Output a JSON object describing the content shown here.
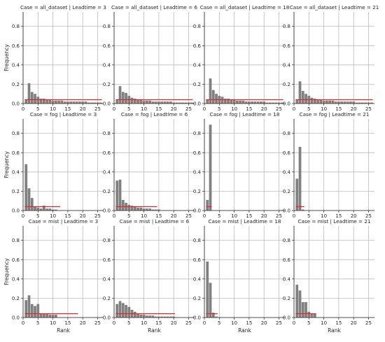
{
  "figure": {
    "ylabel": "Frequency",
    "xlabel": "Rank",
    "colors": {
      "bar": "#808080",
      "reference_line": "#e8242b",
      "grid": "#b0b0b0",
      "axis": "#262626"
    }
  },
  "chart_data": [
    {
      "type": "bar",
      "title": "Case = all_dataset | Leadtime = 3",
      "xlabel": "",
      "ylabel": "Frequency",
      "xlim": [
        0,
        27
      ],
      "ylim": [
        0,
        0.95
      ],
      "xticks": [
        0,
        5,
        10,
        15,
        20,
        25
      ],
      "yticks": [
        0.0,
        0.2,
        0.4,
        0.6,
        0.8
      ],
      "grid": true,
      "x": [
        1,
        2,
        3,
        4,
        5,
        6,
        7,
        8,
        9,
        10,
        11,
        12,
        13,
        14,
        15,
        16,
        17,
        18,
        19,
        20,
        21,
        22,
        23,
        24,
        25,
        26
      ],
      "values": [
        0.04,
        0.21,
        0.12,
        0.1,
        0.07,
        0.05,
        0.05,
        0.04,
        0.04,
        0.03,
        0.03,
        0.03,
        0.03,
        0.02,
        0.02,
        0.02,
        0.02,
        0.02,
        0.02,
        0.02,
        0.02,
        0.01,
        0.01,
        0.01,
        0.01,
        0.01
      ],
      "reference": {
        "value": 0.04,
        "x_range": [
          1,
          26
        ]
      }
    },
    {
      "type": "bar",
      "title": "Case = all_dataset | Leadtime = 6",
      "xlabel": "",
      "ylabel": "",
      "xlim": [
        0,
        27
      ],
      "ylim": [
        0,
        0.95
      ],
      "xticks": [
        0,
        5,
        10,
        15,
        20,
        25
      ],
      "yticks": [
        0.0,
        0.2,
        0.4,
        0.6,
        0.8
      ],
      "grid": true,
      "x": [
        1,
        2,
        3,
        4,
        5,
        6,
        7,
        8,
        9,
        10,
        11,
        12,
        13,
        14,
        15,
        16,
        17,
        18,
        19,
        20,
        21,
        22,
        23,
        24,
        25,
        26
      ],
      "values": [
        0.04,
        0.18,
        0.12,
        0.11,
        0.08,
        0.06,
        0.05,
        0.04,
        0.04,
        0.03,
        0.03,
        0.03,
        0.02,
        0.02,
        0.02,
        0.02,
        0.02,
        0.02,
        0.02,
        0.01,
        0.01,
        0.01,
        0.01,
        0.01,
        0.01,
        0.01
      ],
      "reference": {
        "value": 0.04,
        "x_range": [
          1,
          26
        ]
      }
    },
    {
      "type": "bar",
      "title": "Case = all_dataset | Leadtime = 18",
      "xlabel": "",
      "ylabel": "",
      "xlim": [
        0,
        27
      ],
      "ylim": [
        0,
        0.95
      ],
      "xticks": [
        0,
        5,
        10,
        15,
        20,
        25
      ],
      "yticks": [
        0.0,
        0.2,
        0.4,
        0.6,
        0.8
      ],
      "grid": true,
      "x": [
        1,
        2,
        3,
        4,
        5,
        6,
        7,
        8,
        9,
        10,
        11,
        12,
        13,
        14,
        15,
        16,
        17,
        18,
        19,
        20,
        21,
        22,
        23,
        24,
        25,
        26
      ],
      "values": [
        0.04,
        0.26,
        0.14,
        0.1,
        0.08,
        0.07,
        0.05,
        0.05,
        0.04,
        0.04,
        0.03,
        0.03,
        0.03,
        0.02,
        0.02,
        0.02,
        0.02,
        0.02,
        0.02,
        0.02,
        0.01,
        0.01,
        0.01,
        0.01,
        0.01,
        0.01
      ],
      "reference": {
        "value": 0.04,
        "x_range": [
          1,
          26
        ]
      }
    },
    {
      "type": "bar",
      "title": "Case = all_dataset | Leadtime = 21",
      "xlabel": "",
      "ylabel": "",
      "xlim": [
        0,
        27
      ],
      "ylim": [
        0,
        0.95
      ],
      "xticks": [
        0,
        5,
        10,
        15,
        20,
        25
      ],
      "yticks": [
        0.0,
        0.2,
        0.4,
        0.6,
        0.8
      ],
      "grid": true,
      "x": [
        1,
        2,
        3,
        4,
        5,
        6,
        7,
        8,
        9,
        10,
        11,
        12,
        13,
        14,
        15,
        16,
        17,
        18,
        19,
        20,
        21,
        22,
        23,
        24,
        25,
        26
      ],
      "values": [
        0.04,
        0.23,
        0.13,
        0.1,
        0.08,
        0.06,
        0.05,
        0.04,
        0.04,
        0.03,
        0.03,
        0.03,
        0.03,
        0.02,
        0.02,
        0.02,
        0.02,
        0.02,
        0.02,
        0.02,
        0.01,
        0.01,
        0.01,
        0.01,
        0.01,
        0.01
      ],
      "reference": {
        "value": 0.04,
        "x_range": [
          1,
          26
        ]
      }
    },
    {
      "type": "bar",
      "title": "Case = fog | Leadtime = 3",
      "xlabel": "",
      "ylabel": "Frequency",
      "xlim": [
        0,
        27
      ],
      "ylim": [
        0,
        0.95
      ],
      "xticks": [
        0,
        5,
        10,
        15,
        20,
        25
      ],
      "yticks": [
        0.0,
        0.2,
        0.4,
        0.6,
        0.8
      ],
      "grid": true,
      "x": [
        1,
        2,
        3,
        4,
        5,
        6,
        7,
        8,
        9,
        10,
        11
      ],
      "values": [
        0.48,
        0.23,
        0.13,
        0.04,
        0.03,
        0.02,
        0.05,
        0.02,
        0.02,
        0.01,
        0.01
      ],
      "reference": {
        "value": 0.04,
        "x_range": [
          1,
          12
        ]
      }
    },
    {
      "type": "bar",
      "title": "Case = fog | Leadtime = 6",
      "xlabel": "",
      "ylabel": "",
      "xlim": [
        0,
        27
      ],
      "ylim": [
        0,
        0.95
      ],
      "xticks": [
        0,
        5,
        10,
        15,
        20,
        25
      ],
      "yticks": [
        0.0,
        0.2,
        0.4,
        0.6,
        0.8
      ],
      "grid": true,
      "x": [
        1,
        2,
        3,
        4,
        5,
        6,
        7,
        8,
        9,
        10,
        11,
        12,
        13,
        14,
        15
      ],
      "values": [
        0.31,
        0.32,
        0.11,
        0.08,
        0.06,
        0.05,
        0.04,
        0.03,
        0.03,
        0.02,
        0.02,
        0.02,
        0.01,
        0.01,
        0.01
      ],
      "reference": {
        "value": 0.04,
        "x_range": [
          1,
          14
        ]
      }
    },
    {
      "type": "bar",
      "title": "Case = fog | Leadtime = 18",
      "xlabel": "",
      "ylabel": "",
      "xlim": [
        0,
        27
      ],
      "ylim": [
        0,
        0.95
      ],
      "xticks": [
        0,
        5,
        10,
        15,
        20,
        25
      ],
      "yticks": [
        0.0,
        0.2,
        0.4,
        0.6,
        0.8
      ],
      "grid": true,
      "x": [
        1,
        2
      ],
      "values": [
        0.11,
        0.89
      ],
      "reference": {
        "value": 0.04,
        "x_range": [
          1,
          2
        ]
      }
    },
    {
      "type": "bar",
      "title": "Case = fog | Leadtime = 21",
      "xlabel": "",
      "ylabel": "",
      "xlim": [
        0,
        27
      ],
      "ylim": [
        0,
        0.95
      ],
      "xticks": [
        0,
        5,
        10,
        15,
        20,
        25
      ],
      "yticks": [
        0.0,
        0.2,
        0.4,
        0.6,
        0.8
      ],
      "grid": true,
      "x": [
        1,
        2,
        3
      ],
      "values": [
        0.33,
        0.66,
        0.01
      ],
      "reference": {
        "value": 0.04,
        "x_range": [
          1,
          3
        ]
      }
    },
    {
      "type": "bar",
      "title": "Case = mist | Leadtime = 3",
      "xlabel": "Rank",
      "ylabel": "Frequency",
      "xlim": [
        0,
        27
      ],
      "ylim": [
        0,
        0.95
      ],
      "xticks": [
        0,
        5,
        10,
        15,
        20,
        25
      ],
      "yticks": [
        0.0,
        0.2,
        0.4,
        0.6,
        0.8
      ],
      "grid": true,
      "x": [
        1,
        2,
        3,
        4,
        5,
        6,
        7,
        8,
        9,
        10,
        11
      ],
      "values": [
        0.18,
        0.23,
        0.14,
        0.12,
        0.14,
        0.04,
        0.04,
        0.04,
        0.03,
        0.03,
        0.03
      ],
      "reference": {
        "value": 0.04,
        "x_range": [
          1,
          18
        ]
      }
    },
    {
      "type": "bar",
      "title": "Case = mist | Leadtime = 6",
      "xlabel": "Rank",
      "ylabel": "",
      "xlim": [
        0,
        27
      ],
      "ylim": [
        0,
        0.95
      ],
      "xticks": [
        0,
        5,
        10,
        15,
        20,
        25
      ],
      "yticks": [
        0.0,
        0.2,
        0.4,
        0.6,
        0.8
      ],
      "grid": true,
      "x": [
        1,
        2,
        3,
        4,
        5,
        6,
        7,
        8,
        9,
        10,
        11,
        12,
        13,
        14,
        15,
        16,
        17,
        18,
        19,
        20
      ],
      "values": [
        0.14,
        0.17,
        0.15,
        0.13,
        0.11,
        0.08,
        0.06,
        0.04,
        0.03,
        0.03,
        0.02,
        0.02,
        0.02,
        0.01,
        0.01,
        0.01,
        0.01,
        0.01,
        0.01,
        0.01
      ],
      "reference": {
        "value": 0.04,
        "x_range": [
          1,
          20
        ]
      }
    },
    {
      "type": "bar",
      "title": "Case = mist | Leadtime = 18",
      "xlabel": "Rank",
      "ylabel": "",
      "xlim": [
        0,
        27
      ],
      "ylim": [
        0,
        0.95
      ],
      "xticks": [
        0,
        5,
        10,
        15,
        20,
        25
      ],
      "yticks": [
        0.0,
        0.2,
        0.4,
        0.6,
        0.8
      ],
      "grid": true,
      "x": [
        1,
        2,
        3,
        4
      ],
      "values": [
        0.58,
        0.36,
        0.05,
        0.01
      ],
      "reference": {
        "value": 0.04,
        "x_range": [
          1,
          4
        ]
      }
    },
    {
      "type": "bar",
      "title": "Case = mist | Leadtime = 21",
      "xlabel": "Rank",
      "ylabel": "",
      "xlim": [
        0,
        27
      ],
      "ylim": [
        0,
        0.95
      ],
      "xticks": [
        0,
        5,
        10,
        15,
        20,
        25
      ],
      "yticks": [
        0.0,
        0.2,
        0.4,
        0.6,
        0.8
      ],
      "grid": true,
      "x": [
        1,
        2,
        3,
        4,
        5,
        6,
        7
      ],
      "values": [
        0.34,
        0.28,
        0.16,
        0.16,
        0.06,
        0.04,
        0.04
      ],
      "reference": {
        "value": 0.04,
        "x_range": [
          1,
          7
        ]
      }
    }
  ]
}
